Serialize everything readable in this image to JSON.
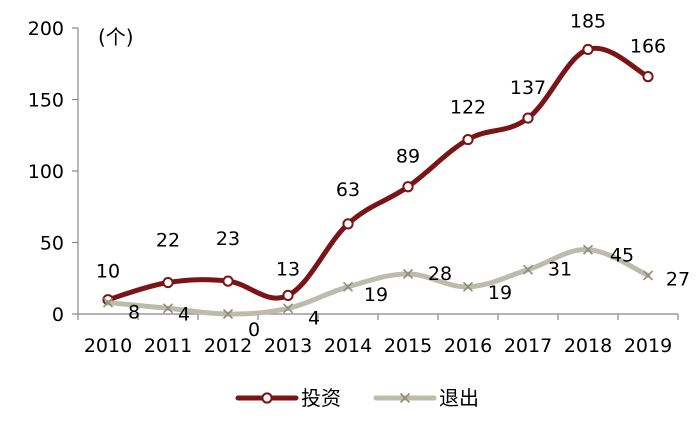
{
  "chart_data": {
    "type": "line",
    "unit_label": "(个)",
    "categories": [
      "2010",
      "2011",
      "2012",
      "2013",
      "2014",
      "2015",
      "2016",
      "2017",
      "2018",
      "2019"
    ],
    "ylim": [
      0,
      200
    ],
    "yticks": [
      0,
      50,
      100,
      150,
      200
    ],
    "grid": false,
    "legend_position": "bottom-center",
    "series": [
      {
        "name": "投资",
        "color": "#7b1416",
        "marker": "circle",
        "values": [
          10,
          22,
          23,
          13,
          63,
          89,
          122,
          137,
          185,
          166
        ]
      },
      {
        "name": "退出",
        "color": "#bdbcac",
        "marker": "x",
        "values": [
          8,
          4,
          0,
          4,
          19,
          28,
          19,
          31,
          45,
          27
        ]
      }
    ]
  }
}
